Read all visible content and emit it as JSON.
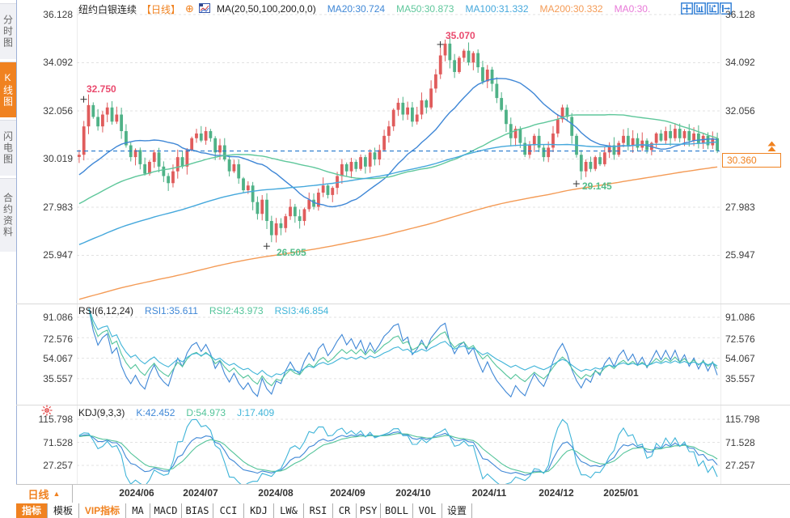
{
  "colors": {
    "accent": "#f08220",
    "up": "#e05c5c",
    "down": "#4fb287",
    "ma20": "#3f87d6",
    "ma50": "#5fc79b",
    "ma100": "#45a8dc",
    "ma200": "#f49b56",
    "pink": "#e879d8",
    "blue": "#3f87d6",
    "green": "#54c49a",
    "cyan": "#3fb4d8",
    "label-red": "#ea4a6e",
    "label-green": "#53bd8a",
    "dashline": "#2277cc"
  },
  "sidebar": {
    "tabs": [
      {
        "label": "分时图",
        "active": false
      },
      {
        "label": "K线图",
        "active": true
      },
      {
        "label": "闪电图",
        "active": false
      },
      {
        "label": "合约资料",
        "active": false
      }
    ]
  },
  "header": {
    "title": "纽约白银连续",
    "period_tag": "【日线】",
    "ma_label": "MA(20,50,100,200,0,0)",
    "ma_items": [
      {
        "label": "MA20:30.724"
      },
      {
        "label": "MA50:30.873"
      },
      {
        "label": "MA100:31.332"
      },
      {
        "label": "MA200:30.332"
      },
      {
        "label": "MA0:30."
      }
    ],
    "icons": [
      "pan-icon",
      "y-axis-scale-icon",
      "x-axis-scale-icon",
      "restore-right-icon"
    ]
  },
  "rsi_header": {
    "name": "RSI(6,12,24)",
    "items": [
      {
        "label": "RSI1:35.611"
      },
      {
        "label": "RSI2:43.973"
      },
      {
        "label": "RSI3:46.854"
      }
    ]
  },
  "kdj_header": {
    "name": "KDJ(9,3,3)",
    "items": [
      {
        "label": "K:42.452"
      },
      {
        "label": "D:54.973"
      },
      {
        "label": "J:17.409"
      }
    ]
  },
  "price_box": {
    "value": "30.360"
  },
  "xaxis": {
    "period": "日线"
  },
  "toolbar": {
    "items": [
      {
        "label": "指标"
      },
      {
        "label": "模板"
      },
      {
        "label": "VIP指标"
      },
      {
        "label": "MA"
      },
      {
        "label": "MACD"
      },
      {
        "label": "BIAS"
      },
      {
        "label": "CCI"
      },
      {
        "label": "KDJ"
      },
      {
        "label": "LW&"
      },
      {
        "label": "RSI"
      },
      {
        "label": "CR"
      },
      {
        "label": "PSY"
      },
      {
        "label": "BOLL"
      },
      {
        "label": "VOL"
      },
      {
        "label": "设置"
      }
    ]
  },
  "chart_data": {
    "type": "candlestick+indicators",
    "x_labels": [
      "2024/06",
      "2024/07",
      "2024/08",
      "2024/09",
      "2024/10",
      "2024/11",
      "2024/12",
      "2025/01"
    ],
    "main": {
      "axis_labels": [
        "36.128",
        "34.092",
        "32.056",
        "30.019",
        "27.983",
        "25.947"
      ],
      "last_price": 30.36
    },
    "closes": [
      30.2,
      31.4,
      32.3,
      31.8,
      31.4,
      31.9,
      32.2,
      31.6,
      31.9,
      31.2,
      30.6,
      30.1,
      30.4,
      29.8,
      29.4,
      29.9,
      30.3,
      29.7,
      29.3,
      29.0,
      29.5,
      30.1,
      29.7,
      30.4,
      30.9,
      31.1,
      30.8,
      31.2,
      30.9,
      30.3,
      30.6,
      30.0,
      29.5,
      29.8,
      29.2,
      28.7,
      28.9,
      28.2,
      27.7,
      28.3,
      27.4,
      26.8,
      27.3,
      27.1,
      27.6,
      28.0,
      27.6,
      27.4,
      27.9,
      28.3,
      28.0,
      28.6,
      28.9,
      28.5,
      28.8,
      29.3,
      29.8,
      29.5,
      29.9,
      29.6,
      30.1,
      29.7,
      30.3,
      30.0,
      30.4,
      31.0,
      31.4,
      32.1,
      32.4,
      31.9,
      32.2,
      31.6,
      31.9,
      32.5,
      32.2,
      33.0,
      33.6,
      34.4,
      34.9,
      34.2,
      33.7,
      34.3,
      34.6,
      34.1,
      34.5,
      33.9,
      33.3,
      33.8,
      33.2,
      32.6,
      32.1,
      31.5,
      30.9,
      31.3,
      30.7,
      30.2,
      30.6,
      31.0,
      30.5,
      30.1,
      30.5,
      31.1,
      31.7,
      32.2,
      31.8,
      31.0,
      30.2,
      29.5,
      29.9,
      29.6,
      30.1,
      29.8,
      30.3,
      30.6,
      30.2,
      30.7,
      31.0,
      30.6,
      30.9,
      30.5,
      30.8,
      30.4,
      30.7,
      31.1,
      30.8,
      31.2,
      30.9,
      31.3,
      30.9,
      31.2,
      30.8,
      31.1,
      30.7,
      31.0,
      30.6,
      30.9,
      30.36
    ],
    "extremes": {
      "2": {
        "high": 32.75
      },
      "41": {
        "low": 26.505
      },
      "78": {
        "high": 35.07
      },
      "107": {
        "low": 29.145
      }
    },
    "annotations": [
      {
        "text": "32.750",
        "kind": "high"
      },
      {
        "text": "26.505",
        "kind": "low"
      },
      {
        "text": "35.070",
        "kind": "high"
      },
      {
        "text": "29.145",
        "kind": "low"
      }
    ],
    "ma_periods": [
      20,
      50,
      100,
      200
    ],
    "prehistory": {
      "start": 21,
      "days": 200,
      "power": 2
    },
    "rsi": {
      "periods": [
        6,
        12,
        24
      ],
      "axis_labels": [
        "91.086",
        "72.576",
        "54.067",
        "35.557"
      ]
    },
    "kdj": {
      "params": [
        9,
        3,
        3
      ],
      "axis_labels": [
        "115.798",
        "71.528",
        "27.257"
      ]
    }
  }
}
